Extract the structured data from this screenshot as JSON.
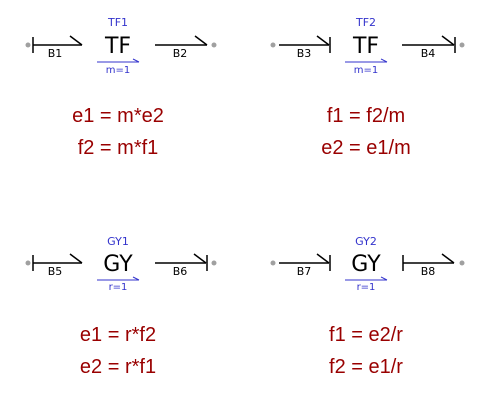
{
  "colors": {
    "port_dot": "#a0a0a0",
    "bond": "#000000",
    "element_label": "#3333cc",
    "equation": "#990000"
  },
  "blocks": {
    "tf1": {
      "name": "TF1",
      "symbol": "TF",
      "param": "m=1",
      "bond_left": "B1",
      "bond_right": "B2",
      "equations": [
        "e1 = m*e2",
        "f2 = m*f1"
      ]
    },
    "tf2": {
      "name": "TF2",
      "symbol": "TF",
      "param": "m=1",
      "bond_left": "B3",
      "bond_right": "B4",
      "equations": [
        "f1 = f2/m",
        "e2 = e1/m"
      ]
    },
    "gy1": {
      "name": "GY1",
      "symbol": "GY",
      "param": "r=1",
      "bond_left": "B5",
      "bond_right": "B6",
      "equations": [
        "e1 = r*f2",
        "e2 = r*f1"
      ]
    },
    "gy2": {
      "name": "GY2",
      "symbol": "GY",
      "param": "r=1",
      "bond_left": "B7",
      "bond_right": "B8",
      "equations": [
        "f1 = e2/r",
        "f2 = e1/r"
      ]
    }
  }
}
